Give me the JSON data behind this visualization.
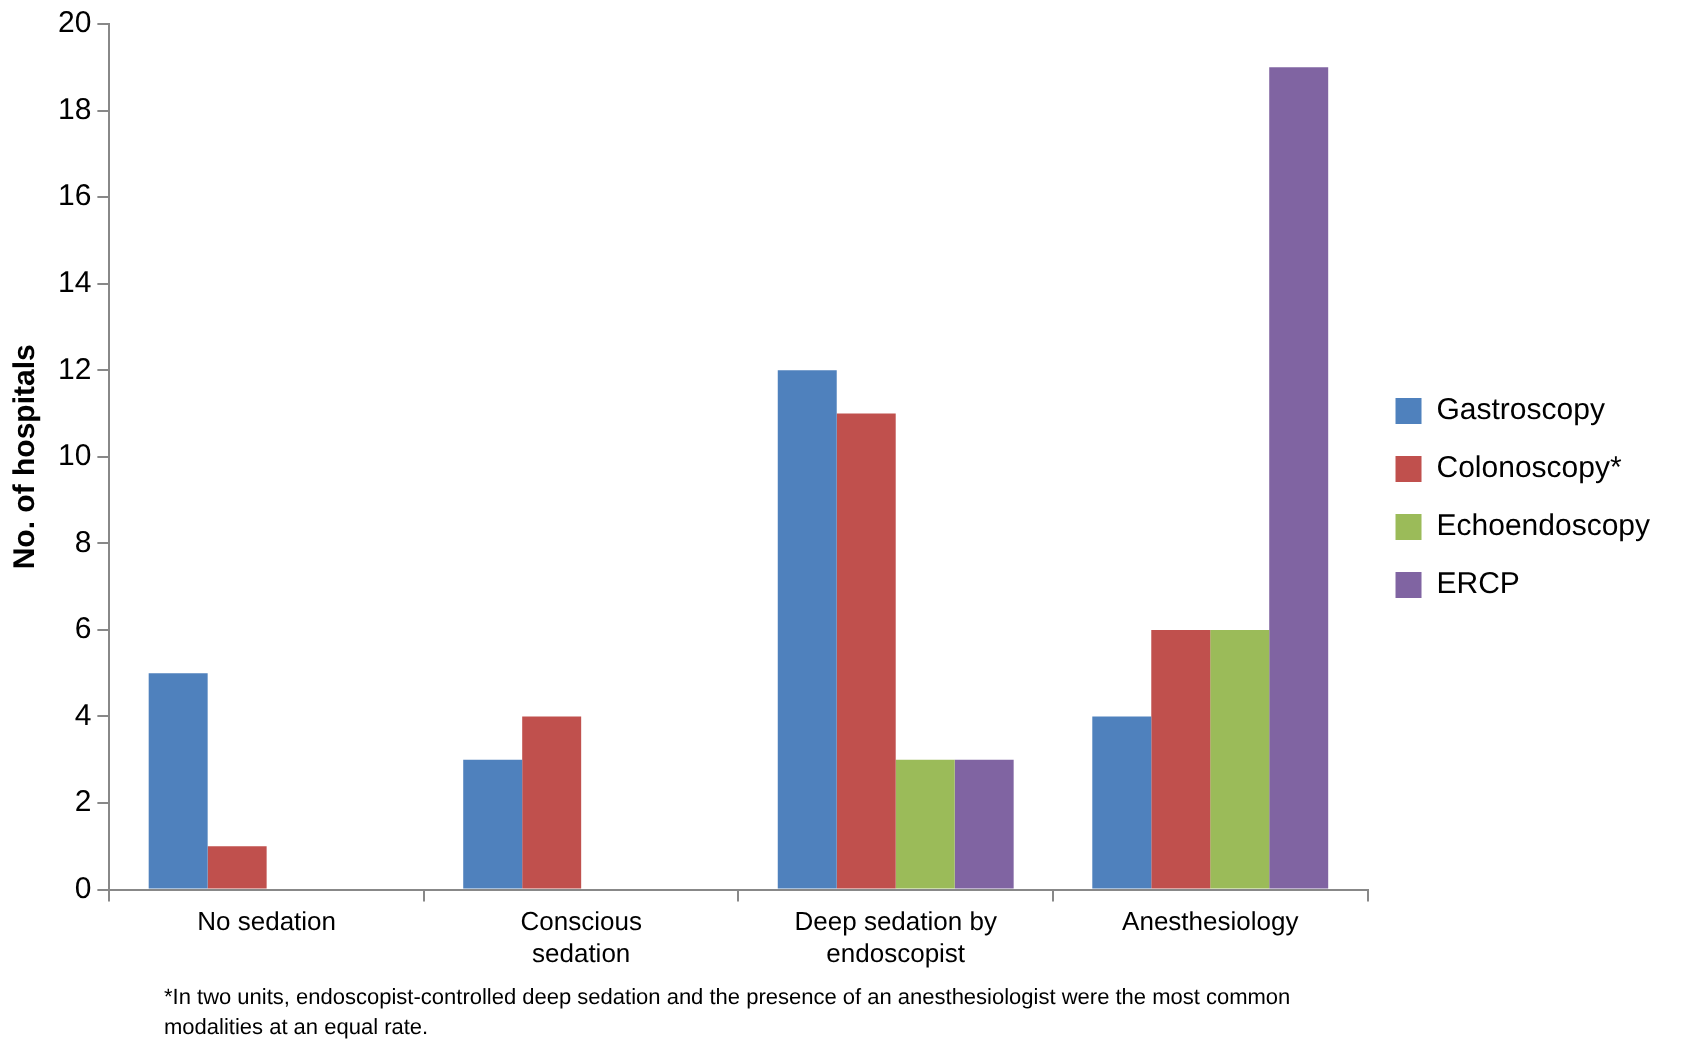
{
  "chart_data": {
    "type": "bar",
    "ylabel": "No. of hospitals",
    "categories": [
      "No sedation",
      "Conscious sedation",
      "Deep sedation by endoscopist",
      "Anesthesiology"
    ],
    "series": [
      {
        "name": "Gastroscopy",
        "color": "#4f81bd",
        "values": [
          5,
          3,
          12,
          4
        ]
      },
      {
        "name": "Colonoscopy*",
        "color": "#c0504d",
        "values": [
          1,
          4,
          11,
          6
        ]
      },
      {
        "name": "Echoendoscopy",
        "color": "#9bbb59",
        "values": [
          0,
          0,
          3,
          6
        ]
      },
      {
        "name": "ERCP",
        "color": "#8064a2",
        "values": [
          0,
          0,
          3,
          19
        ]
      }
    ],
    "ylim": [
      0,
      20
    ],
    "yticks": [
      0,
      2,
      4,
      6,
      8,
      10,
      12,
      14,
      16,
      18,
      20
    ],
    "legend": "right",
    "annotations": [
      "*In two units, endoscopist-controlled deep sedation and the presence of an anesthesiologist were the most common modalities at an equal rate."
    ]
  }
}
